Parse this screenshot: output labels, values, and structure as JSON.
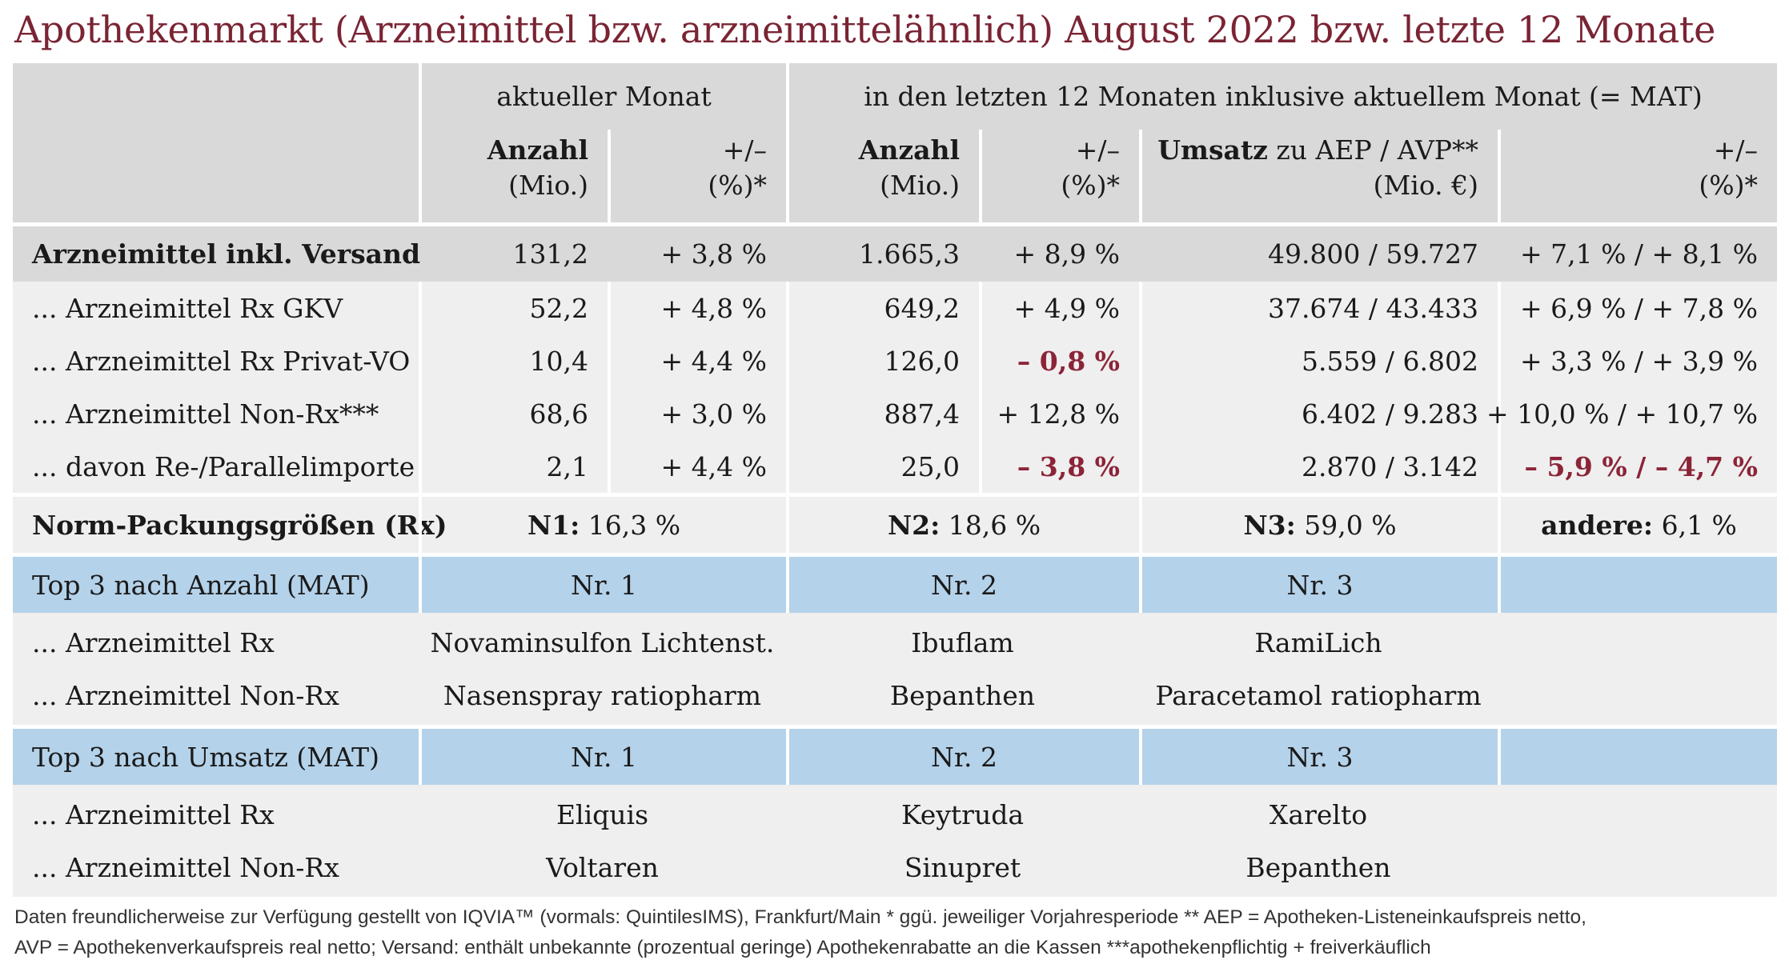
{
  "title": "Apothekenmarkt (Arzneimittel bzw. arzneimittelähnlich) August 2022 bzw. letzte 12 Monate",
  "colors": {
    "title": "#7a2434",
    "negative": "#8c2438",
    "header_bg": "#d9d9d9",
    "row_bg": "#efefef",
    "top3_bg": "#b4d2ea"
  },
  "header": {
    "group_current": "aktueller Monat",
    "group_mat": "in den letzten 12 Monaten inklusive aktuellem Monat (= MAT)",
    "cols": [
      {
        "bold": "Anzahl",
        "sub": "(Mio.)"
      },
      {
        "bold": "+/–",
        "sub": "(%)*"
      },
      {
        "bold": "Anzahl",
        "sub": "(Mio.)"
      },
      {
        "bold": "+/–",
        "sub": "(%)*"
      },
      {
        "bold": "Umsatz",
        "rest": " zu AEP / AVP**",
        "sub": "(Mio. €)"
      },
      {
        "bold": "+/–",
        "sub": "(%)*"
      }
    ]
  },
  "rows": [
    {
      "label": "Arzneimittel inkl. Versand",
      "v": [
        "131,2",
        "+ 3,8 %",
        "1.665,3",
        "+ 8,9 %",
        "49.800 / 59.727",
        "+ 7,1 % / + 8,1 %"
      ]
    },
    {
      "label": "... Arzneimittel Rx GKV",
      "v": [
        "52,2",
        "+ 4,8 %",
        "649,2",
        "+ 4,9 %",
        "37.674 / 43.433",
        "+ 6,9 % / + 7,8 %"
      ]
    },
    {
      "label": "... Arzneimittel Rx Privat-VO",
      "v": [
        "10,4",
        "+ 4,4 %",
        "126,0",
        "– 0,8 %",
        "5.559 / 6.802",
        "+ 3,3 % / + 3,9 %"
      ]
    },
    {
      "label": "... Arzneimittel Non-Rx***",
      "v": [
        "68,6",
        "+ 3,0 %",
        "887,4",
        "+ 12,8 %",
        "6.402 / 9.283",
        "+ 10,0 % / + 10,7 %"
      ]
    },
    {
      "label": "... davon Re-/Parallelimporte",
      "v": [
        "2,1",
        "+ 4,4 %",
        "25,0",
        "– 3,8 %",
        "2.870 / 3.142",
        "– 5,9 % / – 4,7 %"
      ]
    }
  ],
  "norm": {
    "label": "Norm-Packungsgrößen (Rx)",
    "n1_label": "N1:",
    "n1_value": " 16,3 %",
    "n2_label": "N2:",
    "n2_value": " 18,6 %",
    "n3_label": "N3:",
    "n3_value": " 59,0 %",
    "other_label": "andere:",
    "other_value": " 6,1 %"
  },
  "top_anzahl": {
    "label": "Top 3 nach Anzahl (MAT)",
    "ranks": [
      "Nr. 1",
      "Nr. 2",
      "Nr. 3"
    ],
    "rx_label": "... Arzneimittel Rx",
    "rx": [
      "Novaminsulfon Lichtenst.",
      "Ibuflam",
      "RamiLich"
    ],
    "nonrx_label": "... Arzneimittel Non-Rx",
    "nonrx": [
      "Nasenspray ratiopharm",
      "Bepanthen",
      "Paracetamol ratiopharm"
    ]
  },
  "top_umsatz": {
    "label": "Top 3 nach Umsatz (MAT)",
    "ranks": [
      "Nr. 1",
      "Nr. 2",
      "Nr. 3"
    ],
    "rx_label": "... Arzneimittel Rx",
    "rx": [
      "Eliquis",
      "Keytruda",
      "Xarelto"
    ],
    "nonrx_label": "... Arzneimittel Non-Rx",
    "nonrx": [
      "Voltaren",
      "Sinupret",
      "Bepanthen"
    ]
  },
  "footer": {
    "line1": "Daten freundlicherweise zur Verfügung gestellt von IQVIA™ (vormals: QuintilesIMS), Frankfurt/Main  * ggü. jeweiliger Vorjahresperiode  ** AEP = Apotheken-Listeneinkaufspreis netto,",
    "line2": "AVP = Apothekenverkaufspreis real netto; Versand: enthält unbekannte (prozentual geringe) Apothekenrabatte an die Kassen  ***apothekenpflichtig + freiverkäuflich"
  }
}
